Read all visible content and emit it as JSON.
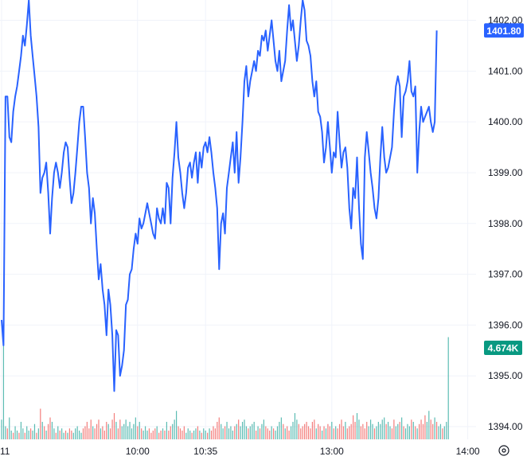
{
  "chart_data": {
    "type": "line",
    "title": "",
    "xlabel": "",
    "ylabel": "",
    "ylim": [
      1393.75,
      1402.4
    ],
    "y_ticks": [
      "1402.00",
      "1401.00",
      "1400.00",
      "1399.00",
      "1398.00",
      "1397.00",
      "1396.00",
      "1395.00",
      "1394.00"
    ],
    "x_ticks": [
      {
        "label": "11",
        "index": 0
      },
      {
        "label": "10:00",
        "index": 70
      },
      {
        "label": "10:35",
        "index": 105
      },
      {
        "label": "13:00",
        "index": 170
      },
      {
        "label": "14:00",
        "index": 240
      }
    ],
    "grid": true,
    "series": [
      {
        "color": "#2962ff",
        "values": [
          1396.1,
          1395.6,
          1400.5,
          1400.5,
          1399.7,
          1399.6,
          1400.2,
          1400.5,
          1400.7,
          1401.0,
          1401.3,
          1401.7,
          1401.5,
          1401.9,
          1402.4,
          1401.7,
          1401.3,
          1400.9,
          1400.5,
          1399.9,
          1398.6,
          1398.9,
          1399.0,
          1399.2,
          1398.6,
          1397.8,
          1398.5,
          1399.0,
          1399.2,
          1399.0,
          1398.7,
          1399.0,
          1399.4,
          1399.6,
          1399.5,
          1398.9,
          1398.4,
          1398.6,
          1399.0,
          1399.5,
          1400.0,
          1400.3,
          1400.3,
          1399.7,
          1399.0,
          1398.7,
          1398.0,
          1398.5,
          1398.2,
          1397.5,
          1396.9,
          1397.2,
          1396.7,
          1396.4,
          1395.8,
          1396.7,
          1396.4,
          1395.8,
          1394.7,
          1395.9,
          1395.8,
          1395.0,
          1395.2,
          1395.5,
          1396.4,
          1396.5,
          1397.0,
          1397.1,
          1397.5,
          1397.8,
          1397.6,
          1398.1,
          1397.9,
          1398.0,
          1398.2,
          1398.4,
          1398.2,
          1398.0,
          1397.8,
          1397.7,
          1398.3,
          1398.1,
          1398.0,
          1398.3,
          1398.0,
          1398.8,
          1398.7,
          1398.0,
          1398.9,
          1399.4,
          1400.0,
          1399.3,
          1399.0,
          1398.6,
          1398.3,
          1398.6,
          1399.1,
          1399.2,
          1398.9,
          1399.2,
          1399.4,
          1398.8,
          1399.4,
          1399.1,
          1399.5,
          1399.6,
          1399.4,
          1399.7,
          1399.4,
          1399.0,
          1398.7,
          1398.3,
          1397.1,
          1398.0,
          1398.2,
          1397.8,
          1398.7,
          1399.0,
          1399.3,
          1399.6,
          1399.0,
          1399.8,
          1398.8,
          1399.3,
          1400.0,
          1400.8,
          1401.1,
          1400.5,
          1400.8,
          1401.0,
          1401.2,
          1401.0,
          1401.4,
          1401.3,
          1401.7,
          1401.6,
          1401.8,
          1401.4,
          1401.7,
          1402.0,
          1401.6,
          1401.2,
          1401.0,
          1401.4,
          1400.8,
          1401.0,
          1401.2,
          1401.8,
          1402.3,
          1401.8,
          1402.0,
          1401.6,
          1401.2,
          1401.5,
          1402.0,
          1402.4,
          1402.2,
          1401.6,
          1401.5,
          1401.3,
          1400.8,
          1400.5,
          1400.8,
          1400.2,
          1400.1,
          1399.8,
          1399.2,
          1399.5,
          1400.0,
          1399.5,
          1399.0,
          1399.4,
          1399.3,
          1400.2,
          1399.6,
          1399.1,
          1399.4,
          1399.5,
          1399.1,
          1398.3,
          1397.9,
          1398.7,
          1398.5,
          1399.3,
          1398.3,
          1397.6,
          1397.3,
          1399.3,
          1399.8,
          1399.4,
          1399.0,
          1398.7,
          1398.3,
          1398.1,
          1398.5,
          1399.3,
          1399.9,
          1399.3,
          1399.0,
          1399.1,
          1399.3,
          1399.5,
          1400.2,
          1400.7,
          1400.9,
          1400.7,
          1399.7,
          1400.5,
          1400.6,
          1400.8,
          1401.2,
          1400.6,
          1400.5,
          1400.7,
          1399.0,
          1399.8,
          1400.3,
          1400.0,
          1400.1,
          1400.2,
          1400.3,
          1400.0,
          1399.8,
          1400.0,
          1401.8
        ]
      }
    ],
    "last_price_label": "1401.80",
    "last_price": 1401.8,
    "volume_label": "4.674K",
    "volume_ylim": [
      0,
      4.8
    ],
    "volume": [
      {
        "v": 0.9,
        "up": true
      },
      {
        "v": 4.67,
        "up": true
      },
      {
        "v": 0.6,
        "up": true
      },
      {
        "v": 0.5,
        "up": false
      },
      {
        "v": 1.0,
        "up": true
      },
      {
        "v": 0.4,
        "up": true
      },
      {
        "v": 0.3,
        "up": false
      },
      {
        "v": 0.6,
        "up": true
      },
      {
        "v": 0.4,
        "up": true
      },
      {
        "v": 0.3,
        "up": false
      },
      {
        "v": 0.8,
        "up": true
      },
      {
        "v": 0.5,
        "up": true
      },
      {
        "v": 0.3,
        "up": false
      },
      {
        "v": 0.6,
        "up": true
      },
      {
        "v": 0.4,
        "up": true
      },
      {
        "v": 0.5,
        "up": false
      },
      {
        "v": 0.4,
        "up": true
      },
      {
        "v": 0.7,
        "up": true
      },
      {
        "v": 0.3,
        "up": false
      },
      {
        "v": 0.5,
        "up": true
      },
      {
        "v": 1.4,
        "up": false
      },
      {
        "v": 0.8,
        "up": true
      },
      {
        "v": 0.6,
        "up": false
      },
      {
        "v": 0.4,
        "up": true
      },
      {
        "v": 0.7,
        "up": false
      },
      {
        "v": 1.0,
        "up": false
      },
      {
        "v": 0.8,
        "up": true
      },
      {
        "v": 0.5,
        "up": true
      },
      {
        "v": 0.3,
        "up": false
      },
      {
        "v": 0.6,
        "up": true
      },
      {
        "v": 0.4,
        "up": false
      },
      {
        "v": 0.5,
        "up": true
      },
      {
        "v": 0.3,
        "up": true
      },
      {
        "v": 0.4,
        "up": false
      },
      {
        "v": 0.3,
        "up": true
      },
      {
        "v": 0.5,
        "up": false
      },
      {
        "v": 0.4,
        "up": false
      },
      {
        "v": 0.3,
        "up": true
      },
      {
        "v": 0.5,
        "up": true
      },
      {
        "v": 0.6,
        "up": true
      },
      {
        "v": 0.4,
        "up": true
      },
      {
        "v": 0.3,
        "up": true
      },
      {
        "v": 0.5,
        "up": false
      },
      {
        "v": 0.6,
        "up": false
      },
      {
        "v": 0.8,
        "up": false
      },
      {
        "v": 0.5,
        "up": false
      },
      {
        "v": 0.9,
        "up": false
      },
      {
        "v": 0.6,
        "up": true
      },
      {
        "v": 0.5,
        "up": false
      },
      {
        "v": 0.7,
        "up": false
      },
      {
        "v": 0.9,
        "up": false
      },
      {
        "v": 0.5,
        "up": true
      },
      {
        "v": 0.6,
        "up": false
      },
      {
        "v": 0.4,
        "up": false
      },
      {
        "v": 0.8,
        "up": false
      },
      {
        "v": 0.7,
        "up": true
      },
      {
        "v": 0.5,
        "up": false
      },
      {
        "v": 0.9,
        "up": false
      },
      {
        "v": 1.2,
        "up": false
      },
      {
        "v": 0.8,
        "up": true
      },
      {
        "v": 0.5,
        "up": false
      },
      {
        "v": 0.9,
        "up": false
      },
      {
        "v": 0.6,
        "up": true
      },
      {
        "v": 0.7,
        "up": true
      },
      {
        "v": 0.9,
        "up": true
      },
      {
        "v": 0.6,
        "up": true
      },
      {
        "v": 0.8,
        "up": true
      },
      {
        "v": 0.5,
        "up": true
      },
      {
        "v": 0.7,
        "up": true
      },
      {
        "v": 1.0,
        "up": true
      },
      {
        "v": 0.6,
        "up": false
      },
      {
        "v": 0.8,
        "up": true
      },
      {
        "v": 0.5,
        "up": false
      },
      {
        "v": 0.4,
        "up": true
      },
      {
        "v": 0.6,
        "up": true
      },
      {
        "v": 0.4,
        "up": true
      },
      {
        "v": 0.5,
        "up": false
      },
      {
        "v": 0.3,
        "up": false
      },
      {
        "v": 0.4,
        "up": false
      },
      {
        "v": 0.5,
        "up": false
      },
      {
        "v": 0.6,
        "up": true
      },
      {
        "v": 0.3,
        "up": false
      },
      {
        "v": 0.4,
        "up": false
      },
      {
        "v": 0.5,
        "up": true
      },
      {
        "v": 0.4,
        "up": false
      },
      {
        "v": 0.8,
        "up": true
      },
      {
        "v": 0.4,
        "up": false
      },
      {
        "v": 0.6,
        "up": false
      },
      {
        "v": 0.7,
        "up": true
      },
      {
        "v": 0.9,
        "up": true
      },
      {
        "v": 1.3,
        "up": true
      },
      {
        "v": 0.6,
        "up": false
      },
      {
        "v": 0.5,
        "up": false
      },
      {
        "v": 0.4,
        "up": false
      },
      {
        "v": 0.6,
        "up": false
      },
      {
        "v": 0.3,
        "up": true
      },
      {
        "v": 0.5,
        "up": true
      },
      {
        "v": 0.4,
        "up": true
      },
      {
        "v": 0.3,
        "up": false
      },
      {
        "v": 0.4,
        "up": true
      },
      {
        "v": 0.5,
        "up": true
      },
      {
        "v": 0.6,
        "up": false
      },
      {
        "v": 0.4,
        "up": true
      },
      {
        "v": 0.3,
        "up": false
      },
      {
        "v": 0.5,
        "up": true
      },
      {
        "v": 0.4,
        "up": true
      },
      {
        "v": 0.3,
        "up": false
      },
      {
        "v": 0.5,
        "up": true
      },
      {
        "v": 0.4,
        "up": false
      },
      {
        "v": 0.6,
        "up": false
      },
      {
        "v": 0.5,
        "up": false
      },
      {
        "v": 0.8,
        "up": false
      },
      {
        "v": 1.0,
        "up": false
      },
      {
        "v": 0.7,
        "up": true
      },
      {
        "v": 0.5,
        "up": true
      },
      {
        "v": 0.6,
        "up": false
      },
      {
        "v": 0.8,
        "up": true
      },
      {
        "v": 0.5,
        "up": true
      },
      {
        "v": 0.6,
        "up": true
      },
      {
        "v": 0.4,
        "up": true
      },
      {
        "v": 0.6,
        "up": false
      },
      {
        "v": 0.7,
        "up": true
      },
      {
        "v": 0.9,
        "up": false
      },
      {
        "v": 0.6,
        "up": true
      },
      {
        "v": 0.8,
        "up": true
      },
      {
        "v": 0.9,
        "up": true
      },
      {
        "v": 0.6,
        "up": true
      },
      {
        "v": 0.5,
        "up": false
      },
      {
        "v": 0.6,
        "up": true
      },
      {
        "v": 0.7,
        "up": true
      },
      {
        "v": 0.8,
        "up": true
      },
      {
        "v": 0.4,
        "up": false
      },
      {
        "v": 0.6,
        "up": true
      },
      {
        "v": 0.5,
        "up": false
      },
      {
        "v": 0.7,
        "up": true
      },
      {
        "v": 0.9,
        "up": true
      },
      {
        "v": 0.6,
        "up": false
      },
      {
        "v": 0.5,
        "up": false
      },
      {
        "v": 0.4,
        "up": false
      },
      {
        "v": 0.6,
        "up": true
      },
      {
        "v": 0.5,
        "up": false
      },
      {
        "v": 0.4,
        "up": true
      },
      {
        "v": 0.6,
        "up": true
      },
      {
        "v": 0.8,
        "up": true
      },
      {
        "v": 1.0,
        "up": true
      },
      {
        "v": 0.7,
        "up": false
      },
      {
        "v": 0.5,
        "up": true
      },
      {
        "v": 0.6,
        "up": false
      },
      {
        "v": 0.4,
        "up": false
      },
      {
        "v": 0.6,
        "up": true
      },
      {
        "v": 0.8,
        "up": true
      },
      {
        "v": 1.2,
        "up": true
      },
      {
        "v": 0.9,
        "up": true
      },
      {
        "v": 0.7,
        "up": false
      },
      {
        "v": 0.5,
        "up": false
      },
      {
        "v": 0.6,
        "up": false
      },
      {
        "v": 0.7,
        "up": false
      },
      {
        "v": 0.8,
        "up": false
      },
      {
        "v": 0.6,
        "up": false
      },
      {
        "v": 0.5,
        "up": false
      },
      {
        "v": 0.8,
        "up": false
      },
      {
        "v": 0.9,
        "up": false
      },
      {
        "v": 0.5,
        "up": true
      },
      {
        "v": 0.7,
        "up": false
      },
      {
        "v": 0.6,
        "up": false
      },
      {
        "v": 0.4,
        "up": true
      },
      {
        "v": 0.6,
        "up": false
      },
      {
        "v": 0.5,
        "up": true
      },
      {
        "v": 0.7,
        "up": false
      },
      {
        "v": 0.6,
        "up": false
      },
      {
        "v": 0.8,
        "up": true
      },
      {
        "v": 0.5,
        "up": false
      },
      {
        "v": 0.6,
        "up": true
      },
      {
        "v": 0.5,
        "up": false
      },
      {
        "v": 0.7,
        "up": false
      },
      {
        "v": 0.9,
        "up": false
      },
      {
        "v": 0.6,
        "up": false
      },
      {
        "v": 0.8,
        "up": true
      },
      {
        "v": 0.5,
        "up": false
      },
      {
        "v": 0.6,
        "up": false
      },
      {
        "v": 0.7,
        "up": false
      },
      {
        "v": 1.1,
        "up": false
      },
      {
        "v": 0.8,
        "up": false
      },
      {
        "v": 1.2,
        "up": true
      },
      {
        "v": 0.9,
        "up": true
      },
      {
        "v": 0.6,
        "up": false
      },
      {
        "v": 0.7,
        "up": false
      },
      {
        "v": 0.5,
        "up": false
      },
      {
        "v": 0.8,
        "up": false
      },
      {
        "v": 0.6,
        "up": true
      },
      {
        "v": 0.9,
        "up": true
      },
      {
        "v": 0.7,
        "up": true
      },
      {
        "v": 0.5,
        "up": false
      },
      {
        "v": 0.6,
        "up": true
      },
      {
        "v": 0.8,
        "up": true
      },
      {
        "v": 0.7,
        "up": true
      },
      {
        "v": 0.9,
        "up": true
      },
      {
        "v": 1.0,
        "up": true
      },
      {
        "v": 0.7,
        "up": false
      },
      {
        "v": 0.8,
        "up": true
      },
      {
        "v": 0.6,
        "up": true
      },
      {
        "v": 0.5,
        "up": false
      },
      {
        "v": 0.9,
        "up": false
      },
      {
        "v": 0.6,
        "up": true
      },
      {
        "v": 0.7,
        "up": true
      },
      {
        "v": 0.8,
        "up": false
      },
      {
        "v": 1.0,
        "up": true
      },
      {
        "v": 0.6,
        "up": false
      },
      {
        "v": 0.5,
        "up": true
      },
      {
        "v": 0.7,
        "up": true
      },
      {
        "v": 0.6,
        "up": true
      },
      {
        "v": 0.9,
        "up": false
      },
      {
        "v": 0.8,
        "up": true
      },
      {
        "v": 0.6,
        "up": false
      },
      {
        "v": 0.5,
        "up": true
      },
      {
        "v": 0.7,
        "up": false
      },
      {
        "v": 0.9,
        "up": false
      },
      {
        "v": 0.7,
        "up": false
      },
      {
        "v": 1.1,
        "up": false
      },
      {
        "v": 0.8,
        "up": true
      },
      {
        "v": 1.3,
        "up": true
      },
      {
        "v": 0.9,
        "up": false
      },
      {
        "v": 0.7,
        "up": false
      },
      {
        "v": 1.0,
        "up": true
      },
      {
        "v": 0.8,
        "up": false
      },
      {
        "v": 0.6,
        "up": true
      },
      {
        "v": 0.7,
        "up": true
      },
      {
        "v": 0.5,
        "up": false
      },
      {
        "v": 0.6,
        "up": true
      },
      {
        "v": 0.8,
        "up": true
      },
      {
        "v": 4.67,
        "up": true
      }
    ],
    "colors": {
      "line": "#2962ff",
      "volume_up": "#26a69a",
      "volume_down": "#ef5350",
      "last_price_badge": "#2962ff",
      "volume_badge": "#089981",
      "grid": "#f0f3fa",
      "axis_text": "#131722"
    }
  },
  "controls": {
    "settings_icon": "gear-icon"
  }
}
